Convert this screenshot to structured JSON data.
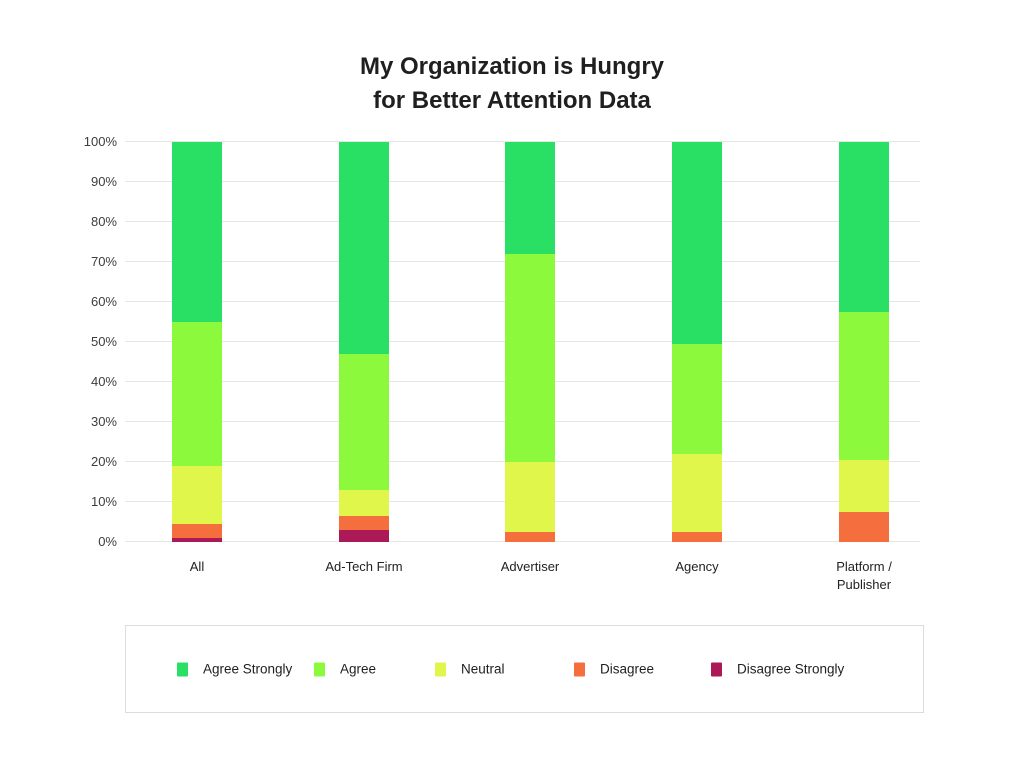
{
  "title": {
    "line1": "My Organization is Hungry",
    "line2": "for Better Attention Data"
  },
  "chart_data": {
    "type": "bar",
    "stacked": true,
    "title": "My Organization is Hungry for Better Attention Data",
    "categories": [
      "All",
      "Ad-Tech Firm",
      "Advertiser",
      "Agency",
      "Platform /\nPublisher"
    ],
    "series": [
      {
        "name": "Agree Strongly",
        "color": "#29E065",
        "values": [
          45,
          53,
          28,
          50.5,
          42.5
        ]
      },
      {
        "name": "Agree",
        "color": "#8CF93D",
        "values": [
          36,
          34,
          52,
          27.5,
          37
        ]
      },
      {
        "name": "Neutral",
        "color": "#E0F64A",
        "values": [
          14.5,
          6.5,
          17.5,
          19.5,
          13
        ]
      },
      {
        "name": "Disagree",
        "color": "#F56F3E",
        "values": [
          3.5,
          3.5,
          2.5,
          2.5,
          7.5
        ]
      },
      {
        "name": "Disagree Strongly",
        "color": "#AB1A56",
        "values": [
          1,
          3,
          0,
          0,
          0
        ]
      }
    ],
    "ylim": [
      0,
      100
    ],
    "ytick_step": 10,
    "yticks": [
      "0%",
      "10%",
      "20%",
      "30%",
      "40%",
      "50%",
      "60%",
      "70%",
      "80%",
      "90%",
      "100%"
    ],
    "xlabel": "",
    "ylabel": "",
    "grid": "horizontal",
    "legend_position": "bottom"
  },
  "layout_colors": {
    "gridline": "#e6e6e6",
    "title_text": "#1f1f1f",
    "axis_text": "#3d3d3d",
    "legend_border": "#dcdcdc"
  }
}
